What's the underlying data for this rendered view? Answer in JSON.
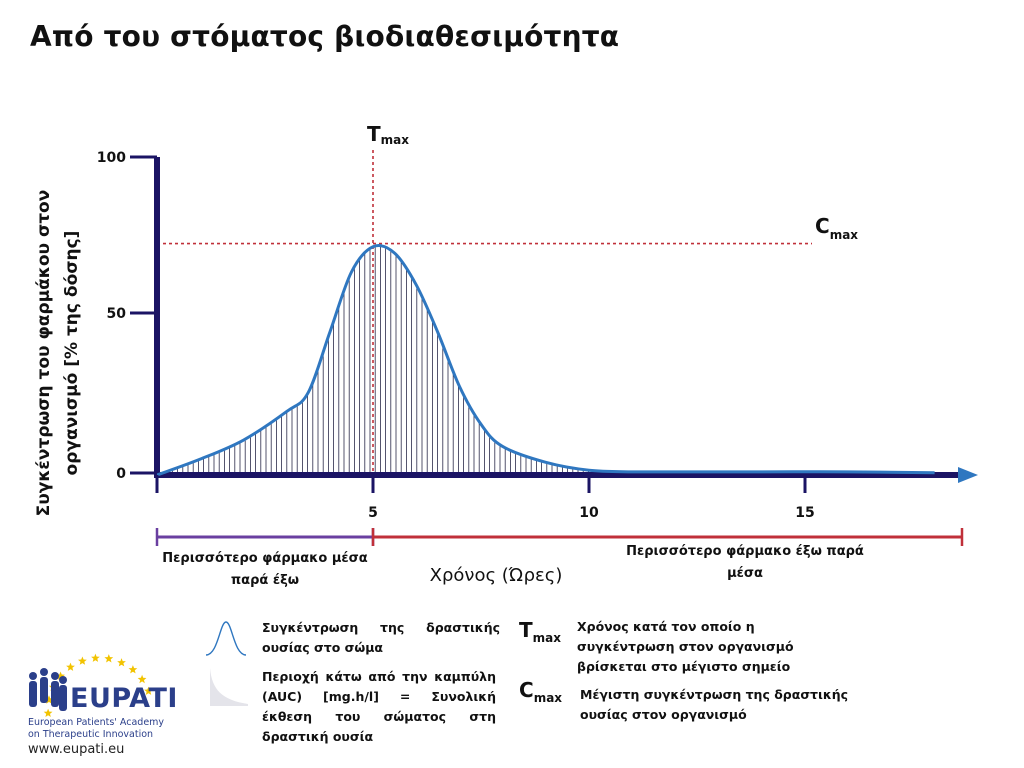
{
  "title": "Από του στόματος βιοδιαθεσιμότητα",
  "chart_data": {
    "type": "area",
    "title": "Από του στόματος βιοδιαθεσιμότητα",
    "ylabel": "Συγκέντρωση του φαρμάκου στον οργανισμό [% της δόσης]",
    "xlabel": "Χρόνος (Ώρες)",
    "xlim": [
      0,
      18.2
    ],
    "ylim": [
      0,
      100
    ],
    "x_ticks": [
      "5",
      "10",
      "15"
    ],
    "y_ticks": [
      "100",
      "50",
      "0"
    ],
    "series": [
      {
        "values": [
          [
            0,
            0
          ],
          [
            1,
            5
          ],
          [
            2,
            11
          ],
          [
            3,
            20
          ],
          [
            3.5,
            26
          ],
          [
            4,
            45
          ],
          [
            4.5,
            64
          ],
          [
            5,
            72
          ],
          [
            5.5,
            70
          ],
          [
            6,
            60
          ],
          [
            6.5,
            45
          ],
          [
            7,
            28
          ],
          [
            7.5,
            16
          ],
          [
            8,
            9
          ],
          [
            9,
            4
          ],
          [
            10,
            1.5
          ],
          [
            11,
            1
          ],
          [
            12,
            1
          ],
          [
            14,
            1
          ],
          [
            16,
            1
          ],
          [
            18,
            0.7
          ]
        ]
      }
    ],
    "tmax": {
      "label": "T",
      "sub": "max",
      "x": 5
    },
    "cmax": {
      "label": "C",
      "sub": "max",
      "y": 73
    },
    "ranges": [
      {
        "from": 0,
        "to": 5,
        "color": "#6a3fa0",
        "label": "Περισσότερο φάρμακο μέσα παρά έξω"
      },
      {
        "from": 5,
        "to": 18.2,
        "color": "#c0303a",
        "label": "Περισσότερο φάρμακο έξω παρά μέσα"
      }
    ],
    "grid": false,
    "colors": {
      "axis": "#1b1464",
      "curve": "#2f77c0",
      "hatch": "#2a2a4a",
      "guide": "#c0303a",
      "arrow": "#2f77c0"
    }
  },
  "legend": {
    "conc": "Συγκέντρωση της δραστικής ουσίας στο σώμα",
    "auc": "Περιοχή κάτω από την καμπύλη (AUC) [mg.h/l] = Συνολική έκθεση του σώματος στη δραστική ουσία",
    "tmax_symbol": "T",
    "tmax_sub": "max",
    "tmax_desc": "Χρόνος κατά τον οποίο η συγκέντρωση στον οργανισμό βρίσκεται στο μέγιστο σημείο",
    "cmax_symbol": "C",
    "cmax_sub": "max",
    "cmax_desc": "Μέγιστη συγκέντρωση της δραστικής ουσίας στον οργανισμό"
  },
  "logo": {
    "name": "EUPATI",
    "line1": "European Patients' Academy",
    "line2": "on Therapeutic Innovation",
    "url": "www.eupati.eu"
  }
}
